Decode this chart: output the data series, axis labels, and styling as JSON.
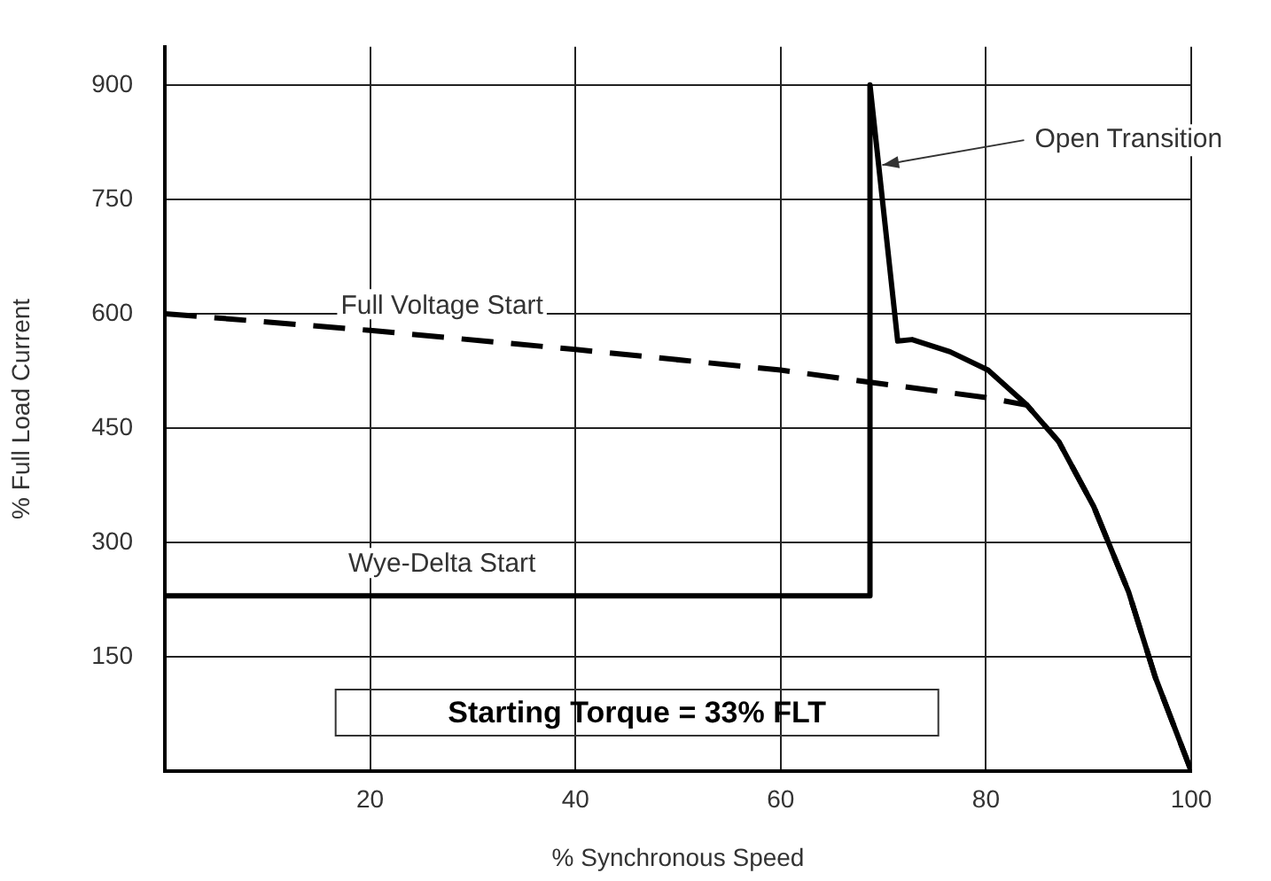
{
  "chart_data": {
    "type": "line",
    "xlabel": "% Synchronous Speed",
    "ylabel": "% Full Load Current",
    "xlim": [
      0,
      100
    ],
    "ylim": [
      0,
      950
    ],
    "xticks": [
      20,
      40,
      60,
      80,
      100
    ],
    "yticks": [
      150,
      300,
      450,
      600,
      750,
      900
    ],
    "grid": true,
    "legend": false,
    "marker": "none",
    "series": [
      {
        "name": "Full Voltage Start",
        "color": "#000000",
        "line_style": "dashed",
        "x": [
          0,
          20,
          40,
          60,
          68.7,
          80,
          84,
          87.1,
          90.5,
          93.9,
          96.5,
          100
        ],
        "values": [
          600,
          578,
          553,
          526,
          510,
          490,
          480,
          432,
          347,
          235,
          123,
          0
        ]
      },
      {
        "name": "Wye-Delta Start",
        "color": "#000000",
        "line_style": "solid",
        "x": [
          0,
          68.7,
          68.7,
          71.4,
          72.8,
          76.5,
          80.2,
          84,
          87.1,
          90.5,
          93.9,
          96.5,
          100
        ],
        "values": [
          230,
          230,
          900,
          564,
          566,
          550,
          526,
          480,
          432,
          347,
          235,
          123,
          0
        ]
      }
    ],
    "annotations": [
      {
        "text": "Open Transition",
        "x": 69.9,
        "y": 795
      },
      "Starting Torque = 33% FLT"
    ]
  }
}
